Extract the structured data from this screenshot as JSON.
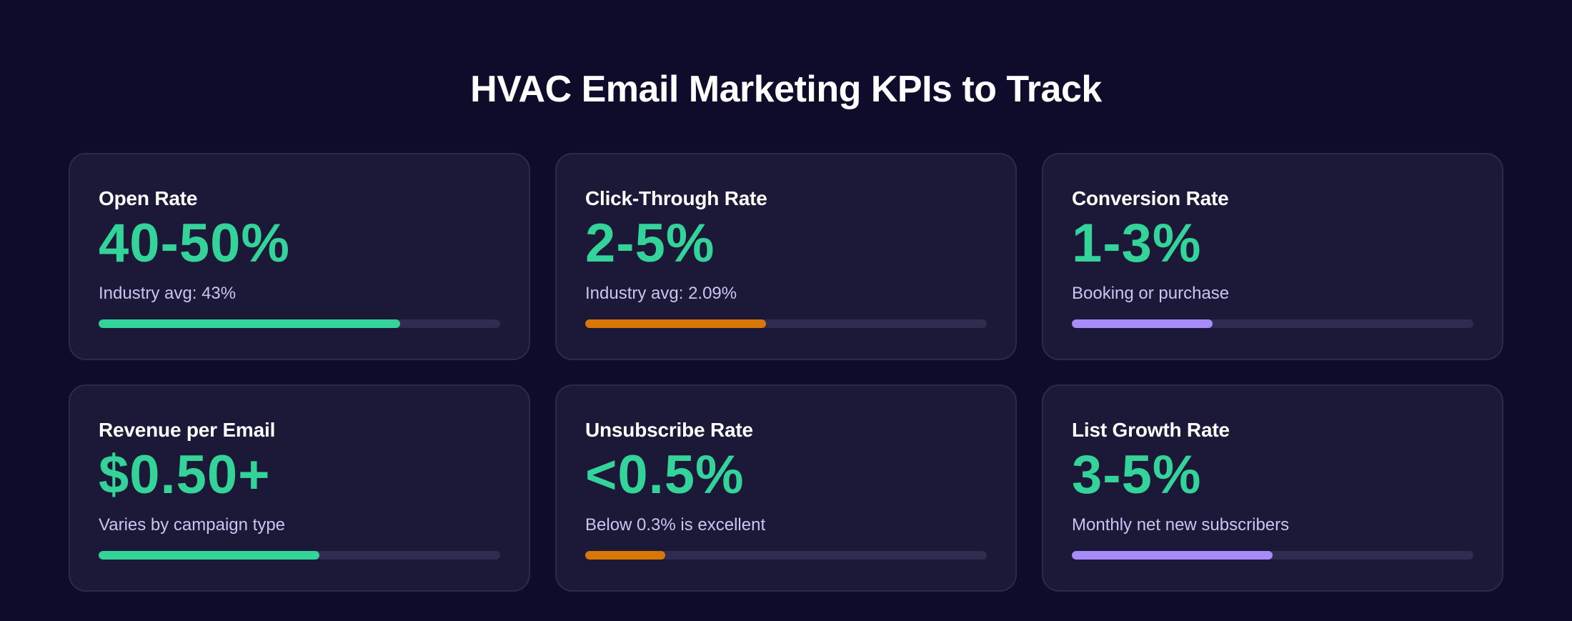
{
  "page": {
    "title": "HVAC Email Marketing KPIs to Track"
  },
  "colors": {
    "background": "#0e0b2b",
    "card": "#1c1838",
    "value_green": "#34d399",
    "bar_green": "#34d399",
    "bar_orange": "#d97706",
    "bar_purple": "#a78bfa",
    "track": "#302c4f"
  },
  "kpis": [
    {
      "label": "Open Rate",
      "value": "40-50%",
      "note": "Industry avg: 43%",
      "progress": 0.75,
      "bar_color": "#34d399"
    },
    {
      "label": "Click-Through Rate",
      "value": "2-5%",
      "note": "Industry avg: 2.09%",
      "progress": 0.45,
      "bar_color": "#d97706"
    },
    {
      "label": "Conversion Rate",
      "value": "1-3%",
      "note": "Booking or purchase",
      "progress": 0.35,
      "bar_color": "#a78bfa"
    },
    {
      "label": "Revenue per Email",
      "value": "$0.50+",
      "note": "Varies by campaign type",
      "progress": 0.55,
      "bar_color": "#34d399"
    },
    {
      "label": "Unsubscribe Rate",
      "value": "<0.5%",
      "note": "Below 0.3% is excellent",
      "progress": 0.2,
      "bar_color": "#d97706"
    },
    {
      "label": "List Growth Rate",
      "value": "3-5%",
      "note": "Monthly net new subscribers",
      "progress": 0.5,
      "bar_color": "#a78bfa"
    }
  ]
}
